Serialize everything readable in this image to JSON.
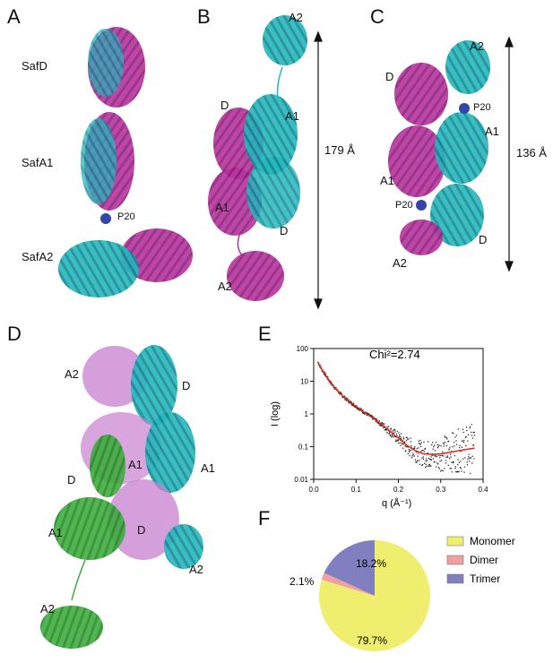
{
  "panels": {
    "A": {
      "letter": "A",
      "labels": [
        "SafD",
        "SafA1",
        "P20",
        "SafA2"
      ]
    },
    "B": {
      "letter": "B",
      "labels": [
        "A2",
        "D",
        "A1",
        "A1",
        "D",
        "A2"
      ],
      "dimension": "179 Å"
    },
    "C": {
      "letter": "C",
      "labels": [
        "A2",
        "D",
        "P20",
        "A1",
        "A1",
        "P20",
        "D",
        "A2"
      ],
      "dimension": "136 Å"
    },
    "D": {
      "letter": "D",
      "labels": [
        "A2",
        "D",
        "A1",
        "D",
        "A1",
        "A1",
        "D",
        "A2",
        "A2"
      ]
    },
    "E": {
      "letter": "E",
      "chi": "Chi²=2.74"
    },
    "F": {
      "letter": "F"
    }
  },
  "colors": {
    "magenta": "#b8329e",
    "cyan": "#22b8c0",
    "green": "#3cae3c",
    "blue": "#3344aa",
    "pink_surface": "#c77fcf"
  },
  "chart_data": [
    {
      "type": "scatter",
      "xlabel": "q (Å⁻¹)",
      "ylabel": "I (log)",
      "xlim": [
        0,
        0.4
      ],
      "ylim": [
        0.01,
        100
      ],
      "yscale": "log",
      "xticks": [
        "0.0",
        "0.1",
        "0.2",
        "0.3",
        "0.4"
      ],
      "yticks": [
        "100",
        "10",
        "1",
        "0.1",
        "0.01"
      ],
      "fit_curve": {
        "color": "#e03020",
        "x": [
          0.01,
          0.02,
          0.04,
          0.06,
          0.08,
          0.1,
          0.12,
          0.14,
          0.16,
          0.18,
          0.2,
          0.22,
          0.24,
          0.26,
          0.28,
          0.3,
          0.32,
          0.34,
          0.36,
          0.38
        ],
        "y": [
          38,
          22,
          9,
          4.5,
          2.6,
          1.7,
          1.1,
          0.75,
          0.48,
          0.3,
          0.18,
          0.11,
          0.075,
          0.06,
          0.058,
          0.06,
          0.066,
          0.074,
          0.082,
          0.09
        ]
      }
    },
    {
      "type": "pie",
      "slices": [
        {
          "name": "Monomer",
          "value": 79.7,
          "label": "79.7%",
          "color": "#f0ee6e"
        },
        {
          "name": "Dimer",
          "value": 2.1,
          "label": "2.1%",
          "color": "#f0a0a0"
        },
        {
          "name": "Trimer",
          "value": 18.2,
          "label": "18.2%",
          "color": "#8080c0"
        }
      ]
    }
  ]
}
